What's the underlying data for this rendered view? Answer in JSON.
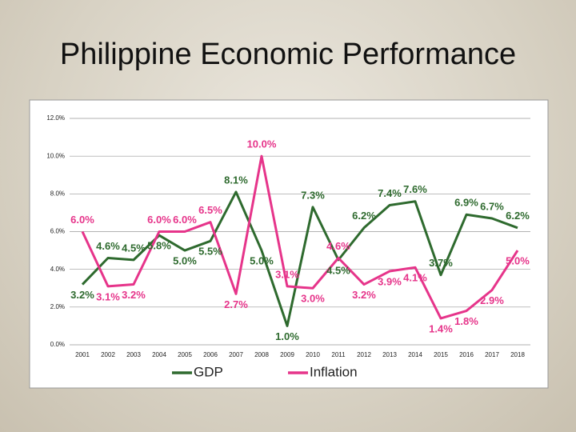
{
  "chart_data": {
    "type": "line",
    "title": "Philippine Economic Performance",
    "categories": [
      "2001",
      "2002",
      "2003",
      "2004",
      "2005",
      "2006",
      "2007",
      "2008",
      "2009",
      "2010",
      "2011",
      "2012",
      "2013",
      "2014",
      "2015",
      "2016",
      "2017",
      "2018"
    ],
    "series": [
      {
        "name": "GDP",
        "color": "#2e6a2e",
        "values": [
          3.2,
          4.6,
          4.5,
          5.8,
          5.0,
          5.5,
          8.1,
          5.0,
          1.0,
          7.3,
          4.5,
          6.2,
          7.4,
          7.6,
          3.7,
          6.9,
          6.7,
          6.2
        ],
        "value_labels": [
          "3.2%",
          "4.6%",
          "4.5%",
          "5.8%",
          "5.0%",
          "5.5%",
          "8.1%",
          "5.0%",
          "1.0%",
          "7.3%",
          "4.5%",
          "6.2%",
          "7.4%",
          "7.6%",
          "3.7%",
          "6.9%",
          "6.7%",
          "6.2%"
        ]
      },
      {
        "name": "Inflation",
        "color": "#e6348a",
        "values": [
          6.0,
          3.1,
          3.2,
          6.0,
          6.0,
          6.5,
          2.7,
          10.0,
          3.1,
          3.0,
          4.6,
          3.2,
          3.9,
          4.1,
          1.4,
          1.8,
          2.9,
          5.0
        ],
        "value_labels": [
          "6.0%",
          "3.1%",
          "3.2%",
          "6.0%",
          "6.0%",
          "6.5%",
          "2.7%",
          "10.0%",
          "3.1%",
          "3.0%",
          "4.6%",
          "3.2%",
          "3.9%",
          "4.1%",
          "1.4%",
          "1.8%",
          "2.9%",
          "5.0%"
        ]
      }
    ],
    "ylim": [
      0,
      12
    ],
    "yticks": [
      {
        "value": 0,
        "label": "0.0%"
      },
      {
        "value": 2,
        "label": "2.0%"
      },
      {
        "value": 4,
        "label": "4.0%"
      },
      {
        "value": 6,
        "label": "6.0%"
      },
      {
        "value": 8,
        "label": "8.0%"
      },
      {
        "value": 10,
        "label": "10.0%"
      },
      {
        "value": 12,
        "label": "12.0%"
      }
    ],
    "grid": true,
    "legend": "bottom"
  }
}
